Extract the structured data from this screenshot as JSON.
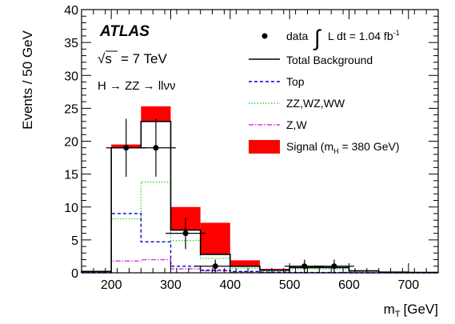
{
  "chart_data": {
    "type": "bar",
    "histogram": true,
    "experiment": "ATLAS",
    "energy_prefix": "√s",
    "energy_value": "= 7 TeV",
    "process": "H → ZZ → llνν",
    "xlabel_main": "m",
    "xlabel_sub": "T",
    "xlabel_unit": "[GeV]",
    "ylabel": "Events / 50 GeV",
    "xlim": [
      150,
      750
    ],
    "ylim": [
      0,
      40
    ],
    "xticks": [
      200,
      300,
      400,
      500,
      600,
      700
    ],
    "yticks": [
      0,
      5,
      10,
      15,
      20,
      25,
      30,
      35,
      40
    ],
    "bin_edges": [
      150,
      200,
      250,
      300,
      350,
      400,
      450,
      500,
      550,
      600,
      650,
      700,
      750
    ],
    "series": [
      {
        "name": "Total Background",
        "values": [
          0.2,
          19.0,
          23.0,
          6.5,
          2.8,
          1.0,
          0.4,
          0.8,
          0.8,
          0.3,
          0.1,
          0.05
        ],
        "color": "#000000",
        "style": "solid"
      },
      {
        "name": "Top",
        "values": [
          0.1,
          9.0,
          4.7,
          1.0,
          0.4,
          0.2,
          0.1,
          0.05,
          0.05,
          0.0,
          0.0,
          0.0
        ],
        "color": "#0000cc",
        "style": "dashed"
      },
      {
        "name": "ZZ,WZ,WW",
        "values": [
          0.1,
          8.2,
          13.8,
          4.9,
          2.2,
          0.7,
          0.3,
          0.6,
          0.6,
          0.2,
          0.1,
          0.05
        ],
        "color": "#33dd33",
        "style": "dotted"
      },
      {
        "name": "Z,W",
        "values": [
          0.0,
          1.8,
          2.0,
          0.6,
          0.3,
          0.1,
          0.05,
          0.0,
          0.0,
          0.0,
          0.0,
          0.0
        ],
        "color": "#dd33dd",
        "style": "dashdot"
      },
      {
        "name": "Signal",
        "values": [
          0.0,
          0.5,
          2.3,
          3.5,
          4.8,
          0.9,
          0.2,
          0.1,
          0.0,
          0.0,
          0.0,
          0.0
        ],
        "color": "#ff0000",
        "style": "filled"
      }
    ],
    "data_points": [
      {
        "x": 225,
        "y": 19,
        "err": 4.4
      },
      {
        "x": 275,
        "y": 19,
        "err": 4.4
      },
      {
        "x": 325,
        "y": 6,
        "err": 2.4
      },
      {
        "x": 375,
        "y": 1,
        "err": 1.0
      },
      {
        "x": 525,
        "y": 1,
        "err": 1.0
      },
      {
        "x": 575,
        "y": 1,
        "err": 1.0
      }
    ],
    "legend": {
      "placement": "top-right",
      "data_label": "data",
      "lumi_label": "L dt = 1.04 fb",
      "lumi_exp": "-1",
      "total_bkg_label": "Total Background",
      "top_label": "Top",
      "diboson_label": "ZZ,WZ,WW",
      "zw_label": "Z,W",
      "signal_label_pre": "Signal (m",
      "signal_label_sub": "H",
      "signal_label_post": " = 380 GeV)",
      "integral_glyph": "∫"
    }
  }
}
